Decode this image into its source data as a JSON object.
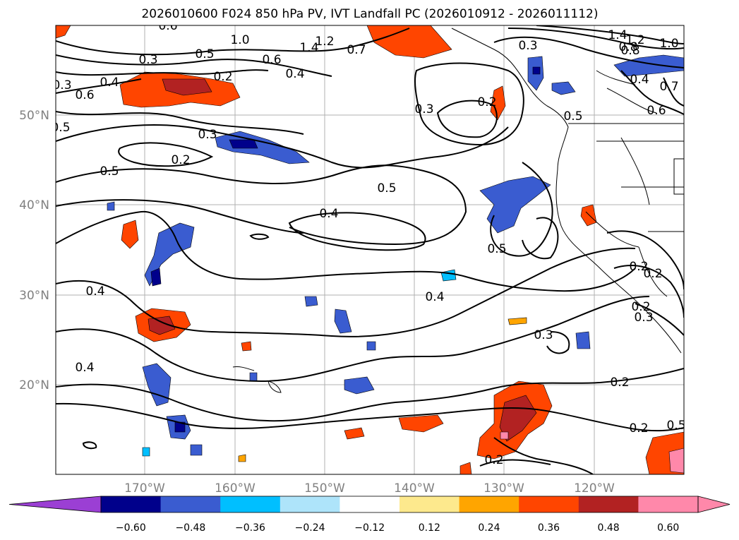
{
  "title": "2026010600 F024 850 hPa PV, IVT Landfall PC (2026010912 - 2026011112)",
  "map": {
    "lat_ticks": [
      "50°N",
      "40°N",
      "30°N",
      "20°N"
    ],
    "lon_ticks": [
      "170°W",
      "160°W",
      "150°W",
      "140°W",
      "130°W",
      "120°W"
    ],
    "tick_color": "#808080",
    "contour_labels": [
      "1.4",
      "1.2",
      "1.0",
      "0.8",
      "0.7",
      "0.6",
      "0.5",
      "0.4",
      "0.3",
      "0.2",
      "0.5",
      "0.4",
      "0.3",
      "0.2",
      "0.6",
      "0.4",
      "0.3",
      "0.5",
      "0.2",
      "0.5",
      "0.4",
      "0.5",
      "0.4",
      "0.3",
      "0.2",
      "0.2",
      "0.5",
      "0.4",
      "0.2",
      "0.3",
      "0.2",
      "0.3",
      "0.6",
      "0.7",
      "0.4",
      "0.5",
      "1.4",
      "1.2",
      "1.0",
      "0.8",
      "0.6",
      "0.2",
      "0.2",
      "0.3"
    ]
  },
  "colorbar": {
    "ticks": [
      "−0.60",
      "−0.48",
      "−0.36",
      "−0.24",
      "−0.12",
      "0.12",
      "0.24",
      "0.36",
      "0.48",
      "0.60"
    ],
    "colors": [
      "#9b3fd4",
      "#00008b",
      "#3a5cd0",
      "#00bfff",
      "#aee4fa",
      "#ffffff",
      "#fde98d",
      "#ffa500",
      "#ff4500",
      "#b22222",
      "#ff88aa",
      "#ff88aa"
    ]
  }
}
